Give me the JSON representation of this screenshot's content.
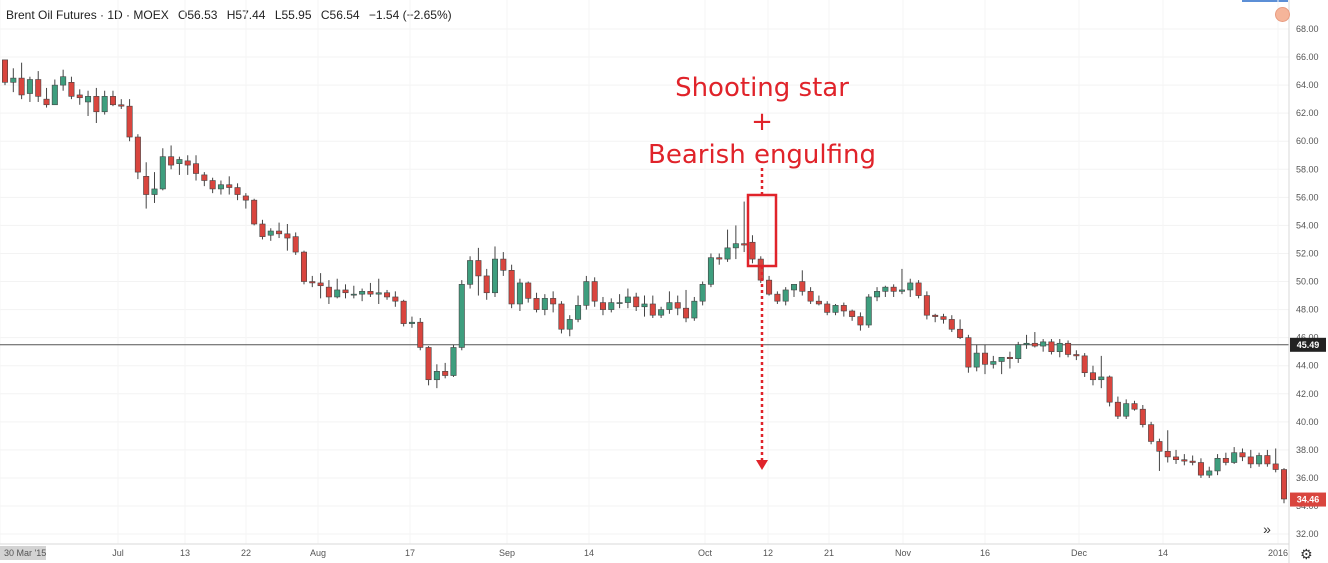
{
  "header": {
    "symbol": "Brent Oil Futures · 1D · MOEX",
    "open": "O56.53",
    "high": "H57.44",
    "low": "L55.95",
    "close": "C56.54",
    "change": "−1.54 (−2.65%)"
  },
  "colors": {
    "up": "#3e9e7e",
    "down": "#d9453e",
    "annotation": "#e0232a",
    "price_line": "#555555"
  },
  "annotation": {
    "line1": "Shooting  star",
    "line2": "+",
    "line3": "Bearish engulfing"
  },
  "icons": {
    "scroll": "double-chevron-right-icon",
    "settings": "gear-icon",
    "menu": "circle-icon"
  },
  "chart_data": {
    "type": "candlestick",
    "title": "Brent Oil Futures · 1D · MOEX",
    "ylim": [
      32,
      69
    ],
    "y_ticks": [
      "68.00",
      "66.00",
      "64.00",
      "62.00",
      "60.00",
      "58.00",
      "56.00",
      "54.00",
      "52.00",
      "50.00",
      "48.00",
      "46.00",
      "44.00",
      "42.00",
      "40.00",
      "38.00",
      "36.00",
      "34.00",
      "32.00"
    ],
    "x_ticks": [
      "30 Mar '15",
      "Jul",
      "13",
      "22",
      "Aug",
      "17",
      "Sep",
      "14",
      "Oct",
      "12",
      "21",
      "Nov",
      "16",
      "Dec",
      "14",
      "2016"
    ],
    "current_price_label": "45.49",
    "current_price_value": 45.49,
    "last_price_label": "34.46",
    "last_price_value": 34.46,
    "candles": [
      [
        65.8,
        65.8,
        64.0,
        64.2
      ],
      [
        64.2,
        65.2,
        63.5,
        64.5
      ],
      [
        64.5,
        65.6,
        63.0,
        63.3
      ],
      [
        63.4,
        64.6,
        62.8,
        64.4
      ],
      [
        64.4,
        65.0,
        62.8,
        63.2
      ],
      [
        63.0,
        63.8,
        62.4,
        62.6
      ],
      [
        62.6,
        64.4,
        62.6,
        64.0
      ],
      [
        64.0,
        65.1,
        63.6,
        64.6
      ],
      [
        64.2,
        64.6,
        63.0,
        63.2
      ],
      [
        63.3,
        63.7,
        62.6,
        63.1
      ],
      [
        62.8,
        63.6,
        61.8,
        63.2
      ],
      [
        63.2,
        63.8,
        61.3,
        62.1
      ],
      [
        62.1,
        63.6,
        61.9,
        63.2
      ],
      [
        63.2,
        63.6,
        62.5,
        62.6
      ],
      [
        62.6,
        63.0,
        62.3,
        62.5
      ],
      [
        62.5,
        63.0,
        60.0,
        60.3
      ],
      [
        60.3,
        60.5,
        57.3,
        57.8
      ],
      [
        57.5,
        58.5,
        55.2,
        56.2
      ],
      [
        56.2,
        57.8,
        55.6,
        56.6
      ],
      [
        56.6,
        59.5,
        56.5,
        58.9
      ],
      [
        58.9,
        59.7,
        58.0,
        58.3
      ],
      [
        58.4,
        58.9,
        57.6,
        58.7
      ],
      [
        58.6,
        59.0,
        57.6,
        58.3
      ],
      [
        58.4,
        59.0,
        57.2,
        57.7
      ],
      [
        57.6,
        57.8,
        56.8,
        57.2
      ],
      [
        57.2,
        57.4,
        56.3,
        56.6
      ],
      [
        56.6,
        57.2,
        56.2,
        56.9
      ],
      [
        56.9,
        57.5,
        56.2,
        56.7
      ],
      [
        56.7,
        57.0,
        55.8,
        56.2
      ],
      [
        56.1,
        56.3,
        55.2,
        55.8
      ],
      [
        55.8,
        55.9,
        54.0,
        54.1
      ],
      [
        54.1,
        54.4,
        53.0,
        53.2
      ],
      [
        53.3,
        53.8,
        52.9,
        53.6
      ],
      [
        53.6,
        54.2,
        53.1,
        53.4
      ],
      [
        53.4,
        54.1,
        52.2,
        53.1
      ],
      [
        53.2,
        53.5,
        51.9,
        52.1
      ],
      [
        52.1,
        52.2,
        49.8,
        50.0
      ],
      [
        50.0,
        50.4,
        49.6,
        49.9
      ],
      [
        49.9,
        50.6,
        48.8,
        49.7
      ],
      [
        49.6,
        50.1,
        48.4,
        48.9
      ],
      [
        48.9,
        50.2,
        48.8,
        49.4
      ],
      [
        49.4,
        49.8,
        48.8,
        49.2
      ],
      [
        49.1,
        49.7,
        48.8,
        49.1
      ],
      [
        49.1,
        49.5,
        48.6,
        49.3
      ],
      [
        49.3,
        49.9,
        48.9,
        49.1
      ],
      [
        49.1,
        50.2,
        48.4,
        49.2
      ],
      [
        49.2,
        49.4,
        48.7,
        48.9
      ],
      [
        48.9,
        49.3,
        48.2,
        48.6
      ],
      [
        48.6,
        48.7,
        46.8,
        47.0
      ],
      [
        47.0,
        47.5,
        46.7,
        47.1
      ],
      [
        47.1,
        47.4,
        45.1,
        45.3
      ],
      [
        45.3,
        45.4,
        42.6,
        43.0
      ],
      [
        43.0,
        44.1,
        42.4,
        43.6
      ],
      [
        43.6,
        44.2,
        43.1,
        43.3
      ],
      [
        43.3,
        45.5,
        43.2,
        45.3
      ],
      [
        45.3,
        50.1,
        45.1,
        49.8
      ],
      [
        49.8,
        51.8,
        49.5,
        51.5
      ],
      [
        51.5,
        52.4,
        49.0,
        50.4
      ],
      [
        50.4,
        50.9,
        48.7,
        49.2
      ],
      [
        49.2,
        52.5,
        48.9,
        51.6
      ],
      [
        51.6,
        52.1,
        50.4,
        50.8
      ],
      [
        50.8,
        51.2,
        48.1,
        48.4
      ],
      [
        48.4,
        50.2,
        47.9,
        49.9
      ],
      [
        49.9,
        50.0,
        48.5,
        48.8
      ],
      [
        48.8,
        49.2,
        47.8,
        48.0
      ],
      [
        48.0,
        49.1,
        47.6,
        48.8
      ],
      [
        48.8,
        49.3,
        47.8,
        48.4
      ],
      [
        48.4,
        48.6,
        46.3,
        46.6
      ],
      [
        46.6,
        47.6,
        46.1,
        47.3
      ],
      [
        47.3,
        49.0,
        47.1,
        48.3
      ],
      [
        48.3,
        50.4,
        48.0,
        50.0
      ],
      [
        50.0,
        50.3,
        48.2,
        48.6
      ],
      [
        48.5,
        48.9,
        47.6,
        48.0
      ],
      [
        48.0,
        48.8,
        47.8,
        48.5
      ],
      [
        48.5,
        49.1,
        48.1,
        48.5
      ],
      [
        48.5,
        49.5,
        48.1,
        48.9
      ],
      [
        48.9,
        49.2,
        47.9,
        48.2
      ],
      [
        48.2,
        49.0,
        47.5,
        48.4
      ],
      [
        48.4,
        49.0,
        47.4,
        47.6
      ],
      [
        47.6,
        48.2,
        47.4,
        48.0
      ],
      [
        48.0,
        49.3,
        47.7,
        48.5
      ],
      [
        48.5,
        49.0,
        47.6,
        48.1
      ],
      [
        48.1,
        49.4,
        47.1,
        47.4
      ],
      [
        47.4,
        48.9,
        47.2,
        48.6
      ],
      [
        48.6,
        50.0,
        48.3,
        49.8
      ],
      [
        49.8,
        52.0,
        49.6,
        51.7
      ],
      [
        51.7,
        52.0,
        51.2,
        51.6
      ],
      [
        51.6,
        53.7,
        51.4,
        52.4
      ],
      [
        52.4,
        54.0,
        51.6,
        52.7
      ],
      [
        52.7,
        55.7,
        52.1,
        52.6
      ],
      [
        52.8,
        53.3,
        51.3,
        51.6
      ],
      [
        51.6,
        51.8,
        49.9,
        50.1
      ],
      [
        50.1,
        50.4,
        49.0,
        49.1
      ],
      [
        49.1,
        49.3,
        48.4,
        48.6
      ],
      [
        48.6,
        49.6,
        48.3,
        49.4
      ],
      [
        49.4,
        49.7,
        48.9,
        49.8
      ],
      [
        50.0,
        50.8,
        49.0,
        49.3
      ],
      [
        49.3,
        49.6,
        48.4,
        48.6
      ],
      [
        48.6,
        49.0,
        48.3,
        48.4
      ],
      [
        48.4,
        48.6,
        47.6,
        47.8
      ],
      [
        47.8,
        48.4,
        47.6,
        48.3
      ],
      [
        48.3,
        48.5,
        47.5,
        47.9
      ],
      [
        47.9,
        48.0,
        47.2,
        47.5
      ],
      [
        47.5,
        47.8,
        46.5,
        46.9
      ],
      [
        46.9,
        49.1,
        46.7,
        48.9
      ],
      [
        48.9,
        49.6,
        48.6,
        49.3
      ],
      [
        49.3,
        49.7,
        48.9,
        49.6
      ],
      [
        49.6,
        49.8,
        48.9,
        49.3
      ],
      [
        49.3,
        50.9,
        49.1,
        49.4
      ],
      [
        49.4,
        50.2,
        48.9,
        49.9
      ],
      [
        49.9,
        50.1,
        48.8,
        49.0
      ],
      [
        49.0,
        49.3,
        47.3,
        47.6
      ],
      [
        47.6,
        47.7,
        47.1,
        47.5
      ],
      [
        47.5,
        47.7,
        47.0,
        47.3
      ],
      [
        47.3,
        47.6,
        46.4,
        46.6
      ],
      [
        46.6,
        47.3,
        45.9,
        46.0
      ],
      [
        46.0,
        46.2,
        43.5,
        43.9
      ],
      [
        43.9,
        45.5,
        43.6,
        44.9
      ],
      [
        44.9,
        45.5,
        43.4,
        44.1
      ],
      [
        44.1,
        44.7,
        43.8,
        44.3
      ],
      [
        44.3,
        44.5,
        43.4,
        44.6
      ],
      [
        44.6,
        45.0,
        43.8,
        44.5
      ],
      [
        44.5,
        45.7,
        44.2,
        45.5
      ],
      [
        45.5,
        46.2,
        45.2,
        45.6
      ],
      [
        45.6,
        46.4,
        45.3,
        45.4
      ],
      [
        45.4,
        45.9,
        45.0,
        45.7
      ],
      [
        45.7,
        45.9,
        44.8,
        45.0
      ],
      [
        45.0,
        45.9,
        44.6,
        45.6
      ],
      [
        45.6,
        45.8,
        44.6,
        44.8
      ],
      [
        44.8,
        45.1,
        44.4,
        44.7
      ],
      [
        44.7,
        44.9,
        43.2,
        43.5
      ],
      [
        43.5,
        44.0,
        42.6,
        43.0
      ],
      [
        43.0,
        44.7,
        42.4,
        43.2
      ],
      [
        43.2,
        43.3,
        41.1,
        41.4
      ],
      [
        41.4,
        41.8,
        40.2,
        40.4
      ],
      [
        40.4,
        41.6,
        40.2,
        41.3
      ],
      [
        41.3,
        41.5,
        40.8,
        40.9
      ],
      [
        40.9,
        41.2,
        39.6,
        39.8
      ],
      [
        39.8,
        40.0,
        38.4,
        38.6
      ],
      [
        38.6,
        38.8,
        36.5,
        37.9
      ],
      [
        37.9,
        39.4,
        37.1,
        37.5
      ],
      [
        37.5,
        38.0,
        37.0,
        37.3
      ],
      [
        37.3,
        37.7,
        36.9,
        37.2
      ],
      [
        37.2,
        37.6,
        36.9,
        37.1
      ],
      [
        37.1,
        37.4,
        36.0,
        36.2
      ],
      [
        36.2,
        36.8,
        36.0,
        36.5
      ],
      [
        36.5,
        37.7,
        36.2,
        37.4
      ],
      [
        37.4,
        37.8,
        36.9,
        37.1
      ],
      [
        37.1,
        38.2,
        37.0,
        37.8
      ],
      [
        37.8,
        38.1,
        37.2,
        37.5
      ],
      [
        37.5,
        38.0,
        36.7,
        37.0
      ],
      [
        37.0,
        37.8,
        36.8,
        37.6
      ],
      [
        37.6,
        38.0,
        36.8,
        37.0
      ],
      [
        37.0,
        38.1,
        36.4,
        36.6
      ],
      [
        36.6,
        36.7,
        34.2,
        34.5
      ]
    ]
  }
}
